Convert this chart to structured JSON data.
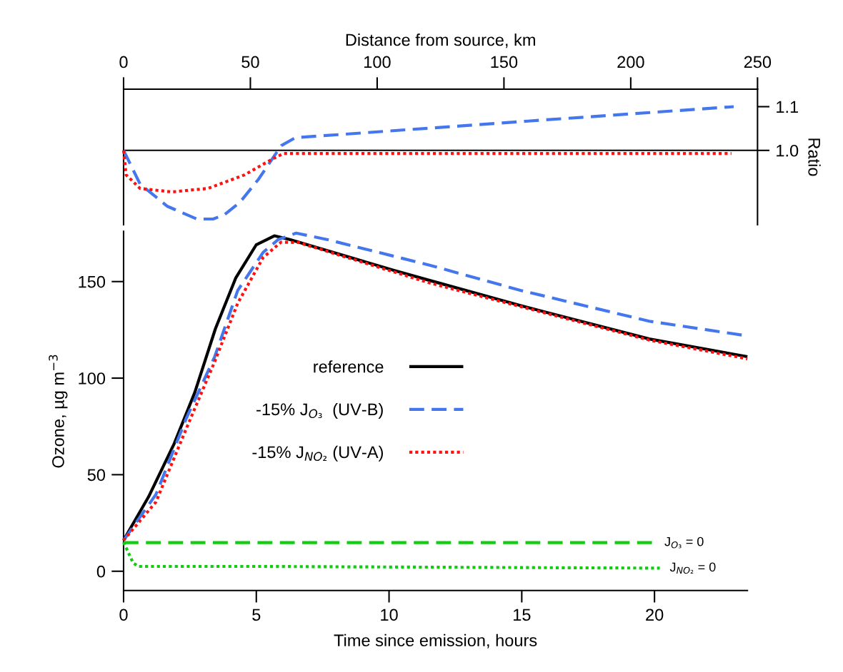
{
  "chart_data": [
    {
      "type": "line",
      "xlabel": "Distance from source, km",
      "ylabel": "Ratio",
      "xlim": [
        0,
        250
      ],
      "xticks": [
        0,
        50,
        100,
        150,
        200,
        250
      ],
      "ylim": [
        0.83,
        1.14
      ],
      "yticks": [
        {
          "value": 1.0,
          "label": "1.0"
        },
        1.1
      ],
      "ref_lines": [
        {
          "axis": "y",
          "value": 1.0,
          "color": "#000000",
          "line_style": "solid"
        }
      ],
      "series": [
        {
          "color": "#4477ee",
          "line_style": "dashed",
          "x": [
            0,
            6.5,
            17.3,
            28.9,
            35.3,
            39.8,
            46,
            53.2,
            62.2,
            67.7,
            159.5,
            240.6
          ],
          "values": [
            1.0,
            0.923,
            0.872,
            0.843,
            0.843,
            0.853,
            0.882,
            0.934,
            1.011,
            1.029,
            1.067,
            1.1
          ]
        },
        {
          "color": "#ff1111",
          "line_style": "dotted",
          "x": [
            0,
            1.0,
            6.5,
            19,
            33.3,
            47.7,
            58.6,
            63.1,
            239.7
          ],
          "values": [
            1.0,
            0.944,
            0.913,
            0.905,
            0.913,
            0.944,
            0.98,
            0.993,
            0.993
          ]
        }
      ]
    },
    {
      "type": "line",
      "xlabel": "Time since emission, hours",
      "ylabel": "Ozone, µg m$^{−3}$",
      "xlim": [
        0,
        23.5
      ],
      "xticks": [
        0,
        5,
        10,
        15,
        20
      ],
      "ylim": [
        -10,
        176
      ],
      "yticks": [
        0,
        50,
        100,
        150
      ],
      "legend": "center",
      "series": [
        {
          "name": "reference",
          "color": "#000000",
          "line_style": "solid",
          "x": [
            0,
            0.94,
            1.91,
            2.68,
            3.46,
            4.23,
            5.0,
            5.68,
            6.26,
            10.16,
            11.58,
            14.97,
            19.8,
            23.5
          ],
          "values": [
            16.1,
            38.5,
            66.2,
            92.5,
            125.6,
            152.0,
            169.1,
            173.7,
            171.8,
            155.9,
            150.4,
            137.5,
            120.3,
            111.1
          ]
        },
        {
          "name": "-15% J$_{O₃}$  (UV-B)",
          "color": "#4477ee",
          "line_style": "dashed",
          "x": [
            0,
            1.22,
            2.37,
            3.43,
            4.3,
            5.26,
            5.83,
            6.5,
            7.66,
            11.5,
            14.97,
            19.8,
            23.5
          ],
          "values": [
            16,
            39.8,
            79.4,
            111,
            145.4,
            165.2,
            171.8,
            175.1,
            171.8,
            158.6,
            145.4,
            129.5,
            121.9
          ]
        },
        {
          "name": "-15% J$_{NO₂}$ (UV-A)",
          "color": "#ff1111",
          "line_style": "dotted",
          "x": [
            0,
            1.22,
            2.37,
            3.43,
            4.3,
            5.26,
            5.93,
            6.6,
            11.5,
            19.8,
            23.5
          ],
          "values": [
            16,
            35.9,
            74.1,
            108.5,
            138.8,
            162.5,
            170.4,
            170.2,
            149.4,
            119.7,
            110.0
          ]
        },
        {
          "color": "#11cc11",
          "line_style": "dashed",
          "x": [
            0,
            20.0
          ],
          "values": [
            14.8,
            14.8
          ]
        },
        {
          "color": "#11cc11",
          "line_style": "dotted",
          "x": [
            0,
            0.36,
            0.56,
            5,
            20.2
          ],
          "values": [
            15,
            4.3,
            2.5,
            2.5,
            1.6
          ]
        }
      ],
      "annotations": [
        {
          "text": "J$_{O₃}$ = 0",
          "x": 20.0,
          "y": 14.8
        },
        {
          "text": "J$_{NO₂}$ = 0",
          "x": 20.2,
          "y": 1.6
        }
      ]
    }
  ]
}
